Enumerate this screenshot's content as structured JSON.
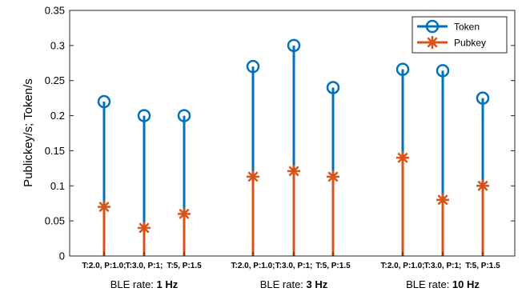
{
  "chart_data": {
    "type": "stem",
    "ylabel": "Publickey/s; Token/s",
    "ylim": [
      0,
      0.35
    ],
    "yticks": [
      "0",
      "0.05",
      "0.1",
      "0.15",
      "0.2",
      "0.25",
      "0.3",
      "0.35"
    ],
    "grid": false,
    "legend_position": "top-right",
    "categories": [
      "T:2.0, P:1.0;",
      "T:3.0, P:1;",
      "T:5, P:1.5",
      "T:2.0, P:1.0;",
      "T:3.0, P:1;",
      "T:5, P:1.5",
      "T:2.0, P:1.0;",
      "T:3.0, P:1;",
      "T:5, P:1.5"
    ],
    "groups": [
      {
        "prefix": "BLE rate: ",
        "value": "1 Hz"
      },
      {
        "prefix": "BLE rate: ",
        "value": "3 Hz"
      },
      {
        "prefix": "BLE rate: ",
        "value": "10 Hz"
      }
    ],
    "series": [
      {
        "name": "Token",
        "color": "#0072BD",
        "marker": "circle",
        "values": [
          0.22,
          0.2,
          0.2,
          0.27,
          0.3,
          0.24,
          0.266,
          0.264,
          0.225
        ]
      },
      {
        "name": "Pubkey",
        "color": "#D95319",
        "marker": "asterisk",
        "values": [
          0.07,
          0.04,
          0.06,
          0.113,
          0.121,
          0.113,
          0.14,
          0.08,
          0.1
        ]
      }
    ]
  }
}
